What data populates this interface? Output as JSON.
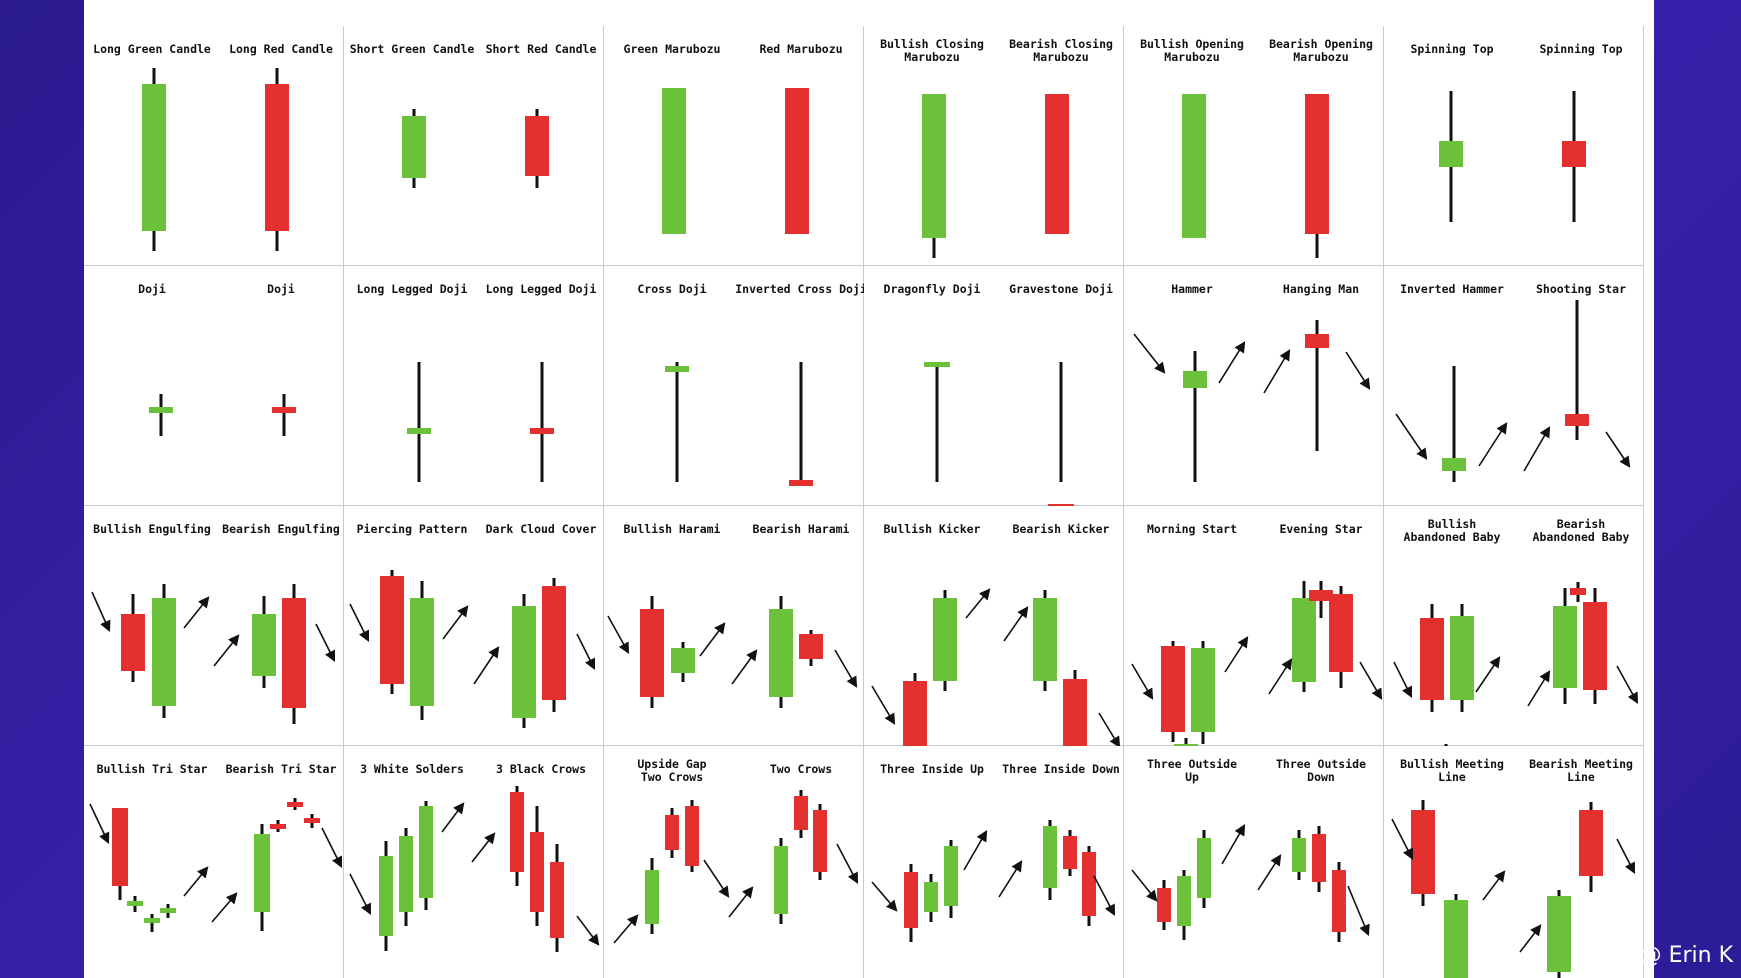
{
  "colors": {
    "green": "#6bc23a",
    "red": "#e53030",
    "wick": "#111111",
    "grid": "#c9c9d6"
  },
  "watermark": "@ Erin K",
  "panels": [
    {
      "labels": [
        "Long Green Candle",
        "Long Red Candle"
      ]
    },
    {
      "labels": [
        "Short Green Candle",
        "Short Red Candle"
      ]
    },
    {
      "labels": [
        "Green Marubozu",
        "Red Marubozu"
      ]
    },
    {
      "labels": [
        "Bullish Closing\nMarubozu",
        "Bearish Closing\nMarubozu"
      ]
    },
    {
      "labels": [
        "Bullish Opening\nMarubozu",
        "Bearish Opening\nMarubozu"
      ]
    },
    {
      "labels": [
        "Spinning Top",
        "Spinning Top"
      ]
    },
    {
      "labels": [
        "Doji",
        "Doji"
      ]
    },
    {
      "labels": [
        "Long Legged Doji",
        "Long Legged Doji"
      ]
    },
    {
      "labels": [
        "Cross Doji",
        "Inverted Cross Doji"
      ]
    },
    {
      "labels": [
        "Dragonfly Doji",
        "Gravestone Doji"
      ]
    },
    {
      "labels": [
        "Hammer",
        "Hanging Man"
      ]
    },
    {
      "labels": [
        "Inverted Hammer",
        "Shooting Star"
      ]
    },
    {
      "labels": [
        "Bullish Engulfing",
        "Bearish Engulfing"
      ]
    },
    {
      "labels": [
        "Piercing Pattern",
        "Dark Cloud Cover"
      ]
    },
    {
      "labels": [
        "Bullish Harami",
        "Bearish Harami"
      ]
    },
    {
      "labels": [
        "Bullish Kicker",
        "Bearish Kicker"
      ]
    },
    {
      "labels": [
        "Morning Start",
        "Evening Star"
      ]
    },
    {
      "labels": [
        "Bullish\nAbandoned Baby",
        "Bearish\nAbandoned Baby"
      ]
    },
    {
      "labels": [
        "Bullish Tri Star",
        "Bearish Tri Star"
      ]
    },
    {
      "labels": [
        "3 White Solders",
        "3 Black Crows"
      ]
    },
    {
      "labels": [
        "Upside Gap\nTwo Crows",
        "Two Crows"
      ]
    },
    {
      "labels": [
        "Three Inside Up",
        "Three Inside Down"
      ]
    },
    {
      "labels": [
        "Three Outside\nUp",
        "Three Outside\nDown"
      ]
    },
    {
      "labels": [
        "Bullish Meeting\nLine",
        "Bearish Meeting\nLine"
      ]
    }
  ]
}
